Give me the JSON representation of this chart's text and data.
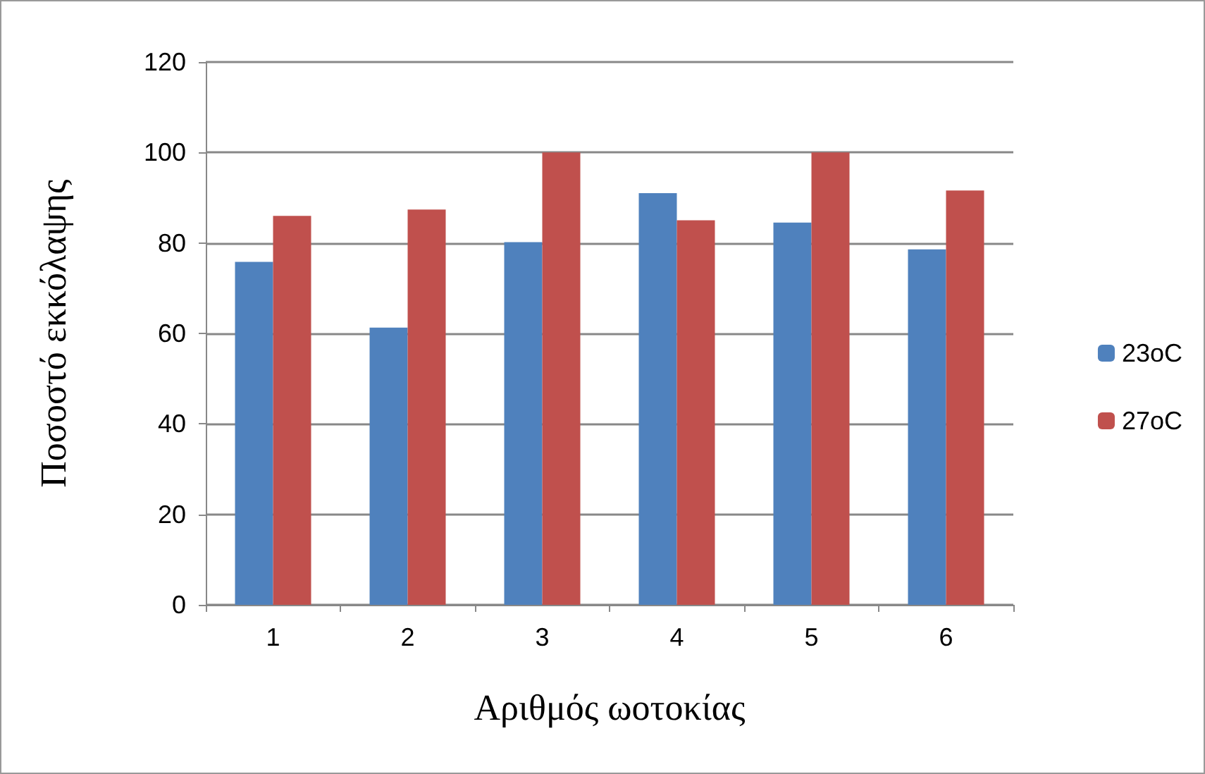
{
  "chart_data": {
    "type": "bar",
    "xlabel": "Αριθμός ωοτοκίας",
    "ylabel": "Ποσοστό εκκόλαψης",
    "categories": [
      "1",
      "2",
      "3",
      "4",
      "5",
      "6"
    ],
    "series": [
      {
        "name": "23oC",
        "color": "#4f81bd",
        "values": [
          75.8,
          61.3,
          80.2,
          91,
          84.5,
          78.6
        ]
      },
      {
        "name": "27oC",
        "color": "#c0504d",
        "values": [
          86,
          87.4,
          100,
          85,
          100,
          91.6
        ]
      }
    ],
    "ylim": [
      0,
      120
    ],
    "yticks": [
      0,
      20,
      40,
      60,
      80,
      100,
      120
    ],
    "grid": "y",
    "legend": "right"
  }
}
